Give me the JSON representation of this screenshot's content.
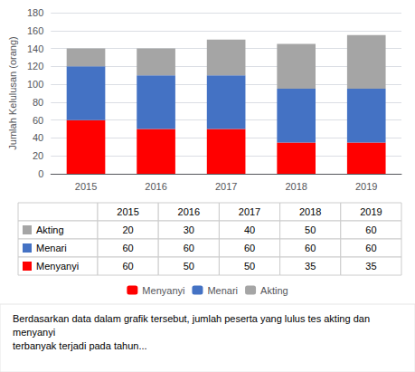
{
  "chart_data": {
    "type": "bar",
    "stacked": true,
    "categories": [
      "2015",
      "2016",
      "2017",
      "2018",
      "2019"
    ],
    "ylabel": "Jumlah Kelulusan (orang)",
    "series": [
      {
        "name": "Menyanyi",
        "color": "#FF0000",
        "values": [
          60,
          50,
          50,
          35,
          35
        ]
      },
      {
        "name": "Menari",
        "color": "#4472C4",
        "values": [
          60,
          60,
          60,
          60,
          60
        ]
      },
      {
        "name": "Akting",
        "color": "#A5A5A5",
        "values": [
          20,
          30,
          40,
          50,
          60
        ]
      }
    ],
    "ylim": [
      0,
      180
    ],
    "yticks": [
      0,
      20,
      40,
      60,
      80,
      100,
      120,
      140,
      160,
      180
    ],
    "grid": true,
    "legend": "bottom",
    "annotations": [
      "Berdasarkan data dalam grafik tersebut, jumlah peserta yang lulus tes akting dan menyanyi",
      "terbanyak terjadi pada tahun..."
    ]
  }
}
